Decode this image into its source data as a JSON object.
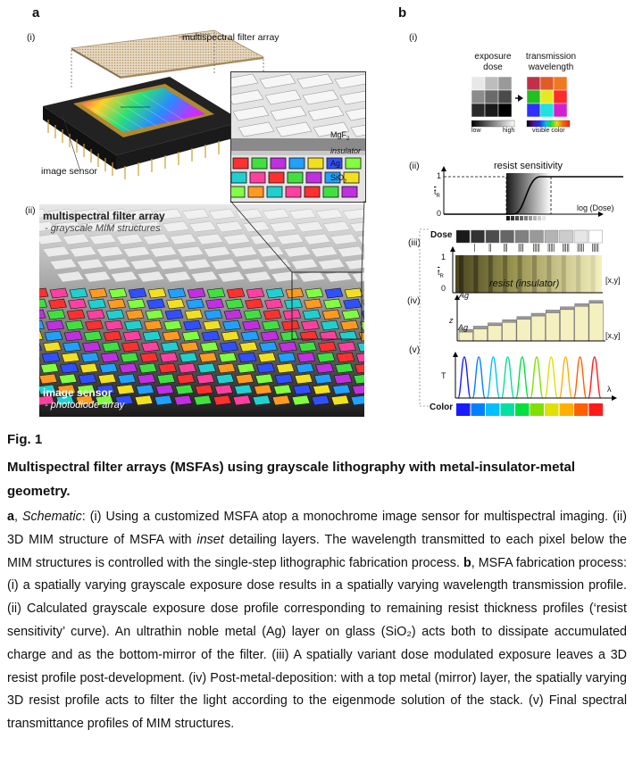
{
  "figure": {
    "panel_a": {
      "label": "a",
      "sub_i": "(i)",
      "sub_ii": "(ii)",
      "msfa_label": "multispectral filter array",
      "sensor_label": "image sensor",
      "inset_layers": [
        "MgF",
        "insulator",
        "Ag",
        "SiO"
      ],
      "inset_subscripts": [
        "2",
        "",
        "",
        "2"
      ],
      "ii_title": "multispectral filter array",
      "ii_subtitle": "- grayscale MIM structures",
      "ii_bottom_title": "image sensor",
      "ii_bottom_subtitle": "- photodiode array"
    },
    "panel_b": {
      "label": "b",
      "sub_i": "(i)",
      "sub_ii": "(ii)",
      "sub_iii": "(iii)",
      "sub_iv": "(iv)",
      "sub_v": "(v)",
      "exposure_dose": "exposure\ndose",
      "transmission_wavelength": "transmission\nwavelength",
      "low": "low",
      "high": "high",
      "visible_color": "visible color",
      "resist_sensitivity": "resist sensitivity",
      "log_dose": "log (Dose)",
      "y_one": "1",
      "y_zero": "0",
      "dose_label": "Dose",
      "resist_insulator": "resist (insulator)",
      "ag": "Ag",
      "xy": "[x,y]",
      "z": "z",
      "T": "T",
      "lambda": "λ",
      "color_label": "Color",
      "tR": "t"
    }
  },
  "caption": {
    "fig_num": "Fig. 1",
    "title": "Multispectral filter arrays (MSFAs) using grayscale lithography with metal-insulator-metal geometry.",
    "body": [
      {
        "b": "a"
      },
      {
        "t": ", "
      },
      {
        "i": "Schematic"
      },
      {
        "t": ": (i) Using a customized MSFA atop a monochrome image sensor for multispectral imaging. (ii) 3D MIM structure of MSFA with "
      },
      {
        "i": "inset"
      },
      {
        "t": " detailing layers. The wavelength transmitted to each pixel below the MIM structures is controlled with the single-step lithographic fabrication process. "
      },
      {
        "b": "b"
      },
      {
        "t": ", MSFA fabrication process: (i) a spatially varying grayscale exposure dose results in a spatially varying wavelength transmission profile. (ii) Calculated grayscale exposure dose profile corresponding to remaining resist thickness profiles (‘resist sensitivity’ curve). An ultrathin noble metal (Ag) layer on glass (SiO₂) acts both to dissipate accumulated charge and as the bottom-mirror of the filter. (iii) A spatially variant dose modulated exposure leaves a 3D resist profile post-development. (iv) Post-metal-deposition: with a top metal (mirror) layer, the spatially varying 3D resist profile acts to filter the light according to the eigenmode solution of the stack. (v) Final spectral transmittance profiles of MIM structures."
      }
    ]
  },
  "colors": {
    "dose_grays": [
      "#1a1a1a",
      "#333333",
      "#4d4d4d",
      "#666666",
      "#808080",
      "#999999",
      "#b3b3b3",
      "#cccccc",
      "#e6e6e6",
      "#ffffff"
    ],
    "spectrum": [
      "#1a1aff",
      "#0080ff",
      "#00c0ff",
      "#00e0a0",
      "#00e040",
      "#80e000",
      "#e0e000",
      "#ffb000",
      "#ff6000",
      "#ff1a1a"
    ],
    "grid_gray": [
      "#e8e8e8",
      "#bdbdbd",
      "#9a9a9a",
      "#8c8c8c",
      "#6a6a6a",
      "#4a4a4a",
      "#2a2a2a",
      "#1a1a1a",
      "#000000"
    ],
    "grid_color": [
      "#c0304a",
      "#e05a2a",
      "#f07820",
      "#20c020",
      "#e8e820",
      "#ff2a2a",
      "#3030ff",
      "#20e0e0",
      "#d020d0"
    ]
  }
}
